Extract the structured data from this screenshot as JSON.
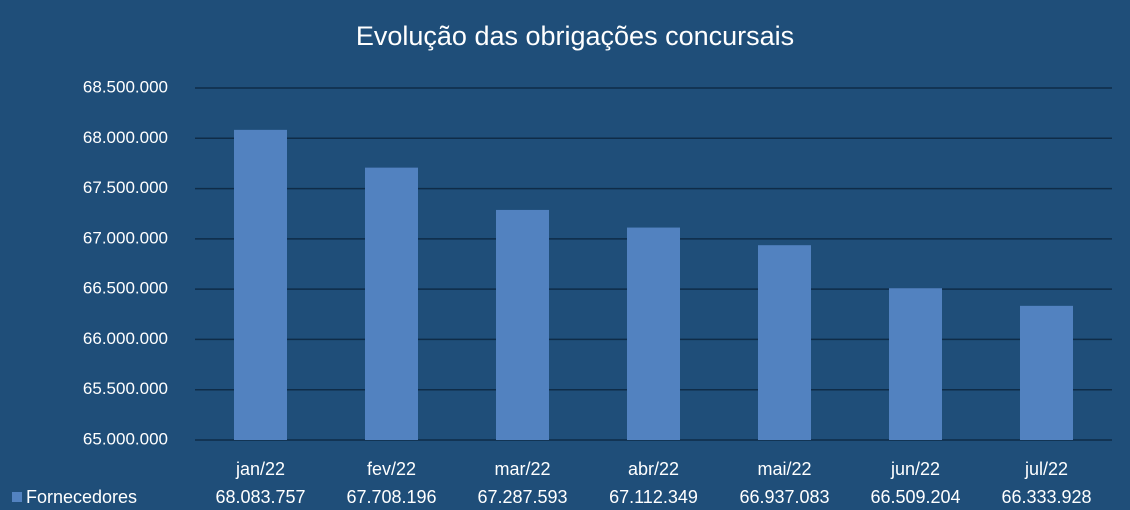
{
  "chart_data": {
    "type": "bar",
    "title": "Evolução das obrigações concursais",
    "categories": [
      "jan/22",
      "fev/22",
      "mar/22",
      "abr/22",
      "mai/22",
      "jun/22",
      "jul/22"
    ],
    "series": [
      {
        "name": "Fornecedores",
        "color": "#5282c0",
        "values": [
          68083757,
          67708196,
          67287593,
          67112349,
          66937083,
          66509204,
          66333928
        ],
        "value_labels": [
          "68.083.757",
          "67.708.196",
          "67.287.593",
          "67.112.349",
          "66.937.083",
          "66.509.204",
          "66.333.928"
        ]
      }
    ],
    "ylim": [
      65000000,
      68500000
    ],
    "yticks": [
      {
        "value": 65000000,
        "label": "65.000.000"
      },
      {
        "value": 65500000,
        "label": "65.500.000"
      },
      {
        "value": 66000000,
        "label": "66.000.000"
      },
      {
        "value": 66500000,
        "label": "66.500.000"
      },
      {
        "value": 67000000,
        "label": "67.000.000"
      },
      {
        "value": 67500000,
        "label": "67.500.000"
      },
      {
        "value": 68000000,
        "label": "68.000.000"
      },
      {
        "value": 68500000,
        "label": "68.500.000"
      }
    ],
    "grid": true
  }
}
